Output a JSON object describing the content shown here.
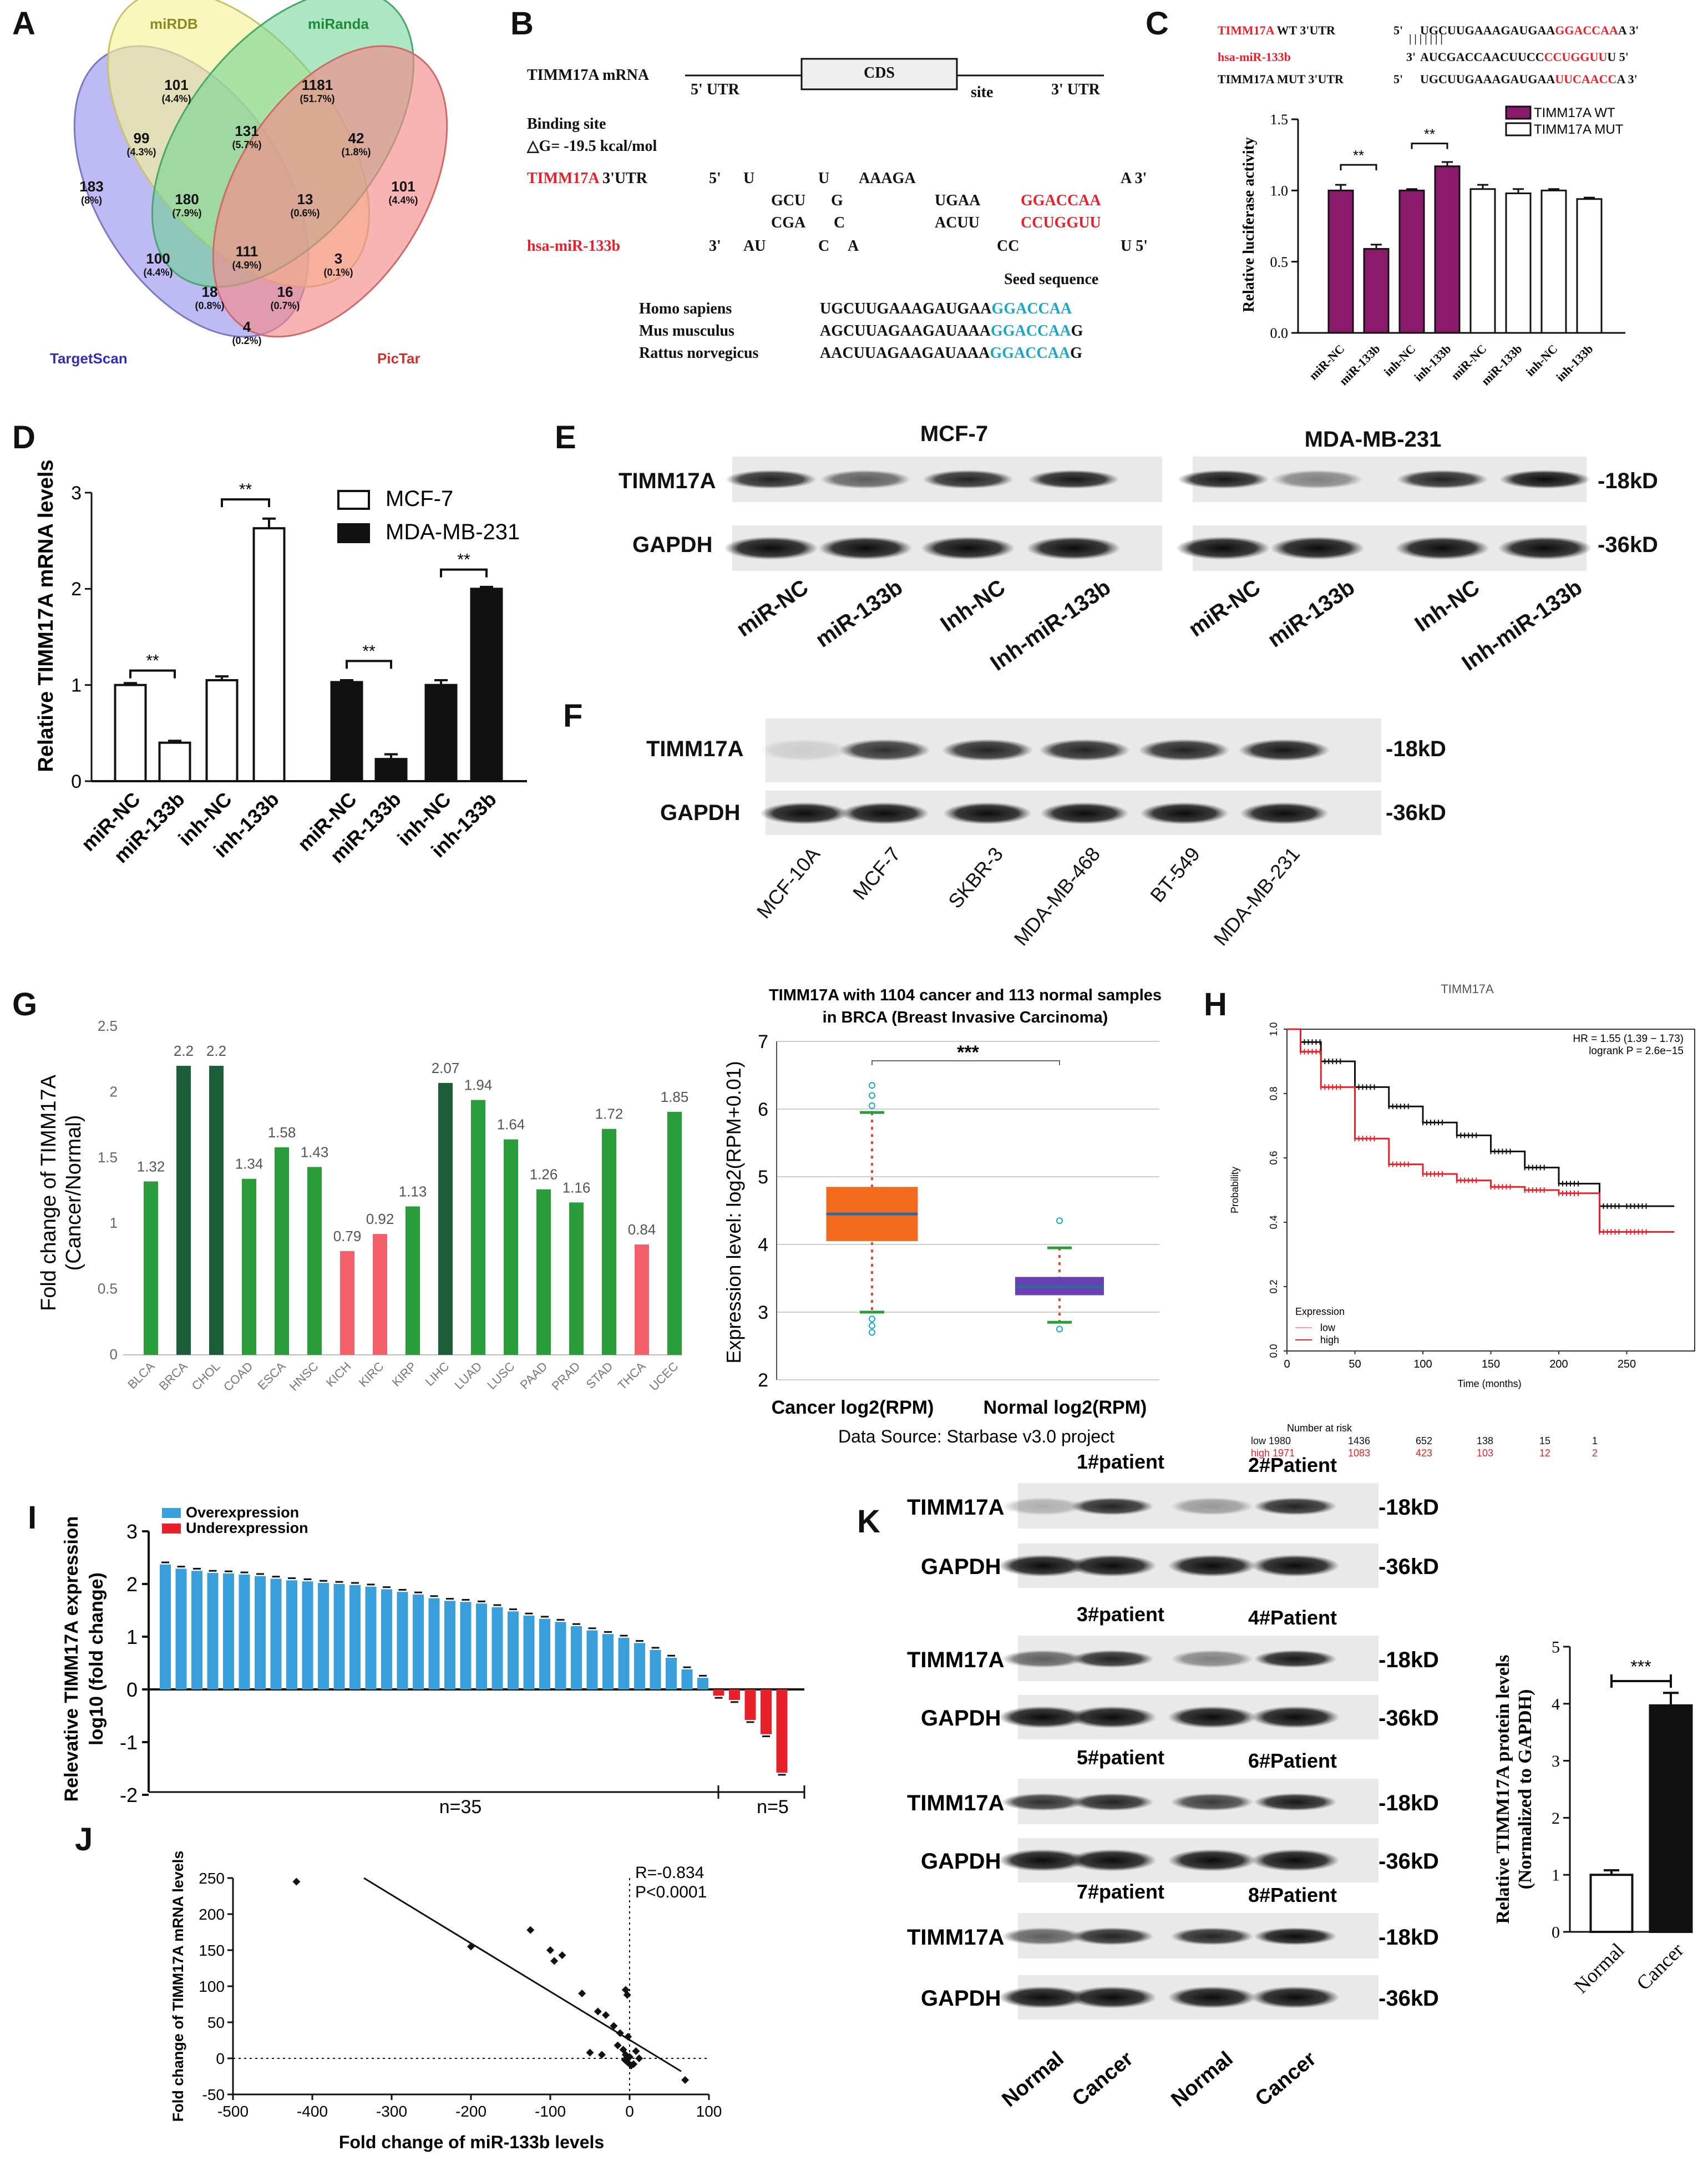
{
  "panel_labels": [
    "A",
    "B",
    "C",
    "D",
    "E",
    "F",
    "G",
    "H",
    "I",
    "J",
    "K"
  ],
  "colors": {
    "red": "#e8202a",
    "purple": "#8b1a6b",
    "blue": "#3aa0dc",
    "cyan": "#1aa6c8",
    "green": "#2a9d3a",
    "darkgreen": "#1d5e3a",
    "pink": "#f4606a",
    "black": "#111111"
  },
  "panel_A": {
    "sets": [
      "miRDB",
      "miRanda",
      "TargetScan",
      "PicTar"
    ],
    "regions": [
      {
        "n": "101",
        "p": "(4.4%)"
      },
      {
        "n": "1181",
        "p": "(51.7%)"
      },
      {
        "n": "99",
        "p": "(4.3%)"
      },
      {
        "n": "131",
        "p": "(5.7%)"
      },
      {
        "n": "42",
        "p": "(1.8%)"
      },
      {
        "n": "183",
        "p": "(8%)"
      },
      {
        "n": "180",
        "p": "(7.9%)"
      },
      {
        "n": "13",
        "p": "(0.6%)"
      },
      {
        "n": "101",
        "p": "(4.4%)"
      },
      {
        "n": "111",
        "p": "(4.9%)"
      },
      {
        "n": "100",
        "p": "(4.4%)"
      },
      {
        "n": "3",
        "p": "(0.1%)"
      },
      {
        "n": "18",
        "p": "(0.8%)"
      },
      {
        "n": "16",
        "p": "(0.7%)"
      },
      {
        "n": "4",
        "p": "(0.2%)"
      }
    ]
  },
  "panel_B": {
    "mrna": "TIMM17A mRNA",
    "cds": "CDS",
    "utr5": "5' UTR",
    "site": "site",
    "utr3": "3' UTR",
    "binding": "Binding site",
    "dg": "△G= -19.5 kcal/mol",
    "timm_label": "TIMM17A",
    "utr_label": " 3'UTR",
    "mir_label": "hsa-miR-133b",
    "l1": [
      "5'",
      "U",
      "U",
      "AAAGA",
      "A 3'"
    ],
    "l2": [
      "GCU",
      "G",
      "UGAA",
      "GGACCAA"
    ],
    "l3": [
      "CGA",
      "C",
      "ACUU",
      "CCUGGUU"
    ],
    "l4": [
      "3'",
      "AU",
      "C",
      "A",
      "CC",
      "U 5'"
    ],
    "seed_title": "Seed sequence",
    "species": [
      {
        "name": "Homo sapiens",
        "pre": "UGCUUGAAAGAUGAA",
        "seed": "GGACCAA",
        "post": ""
      },
      {
        "name": "Mus musculus",
        "pre": "AGCUUAGAAGAUAAA",
        "seed": "GGACCAA",
        "post": "G"
      },
      {
        "name": "Rattus norvegicus",
        "pre": "AACUUAGAAGAUAAA",
        "seed": "GGACCAA",
        "post": "G"
      }
    ]
  },
  "panel_C": {
    "rows": [
      {
        "label": "TIMM17A",
        "tail": " WT 3'UTR",
        "end": "5'",
        "pre": "UGCUUGAAAGAUGAA",
        "hl": "GGACCAA",
        "post": "A 3'"
      },
      {
        "label": "hsa-miR-133b",
        "tail": "",
        "end": "3'",
        "pre": "AUCGACCAACUUCC",
        "hl": "CCUGGUU",
        "post": "U 5'"
      },
      {
        "label": "TIMM17A MUT 3'UTR",
        "tail": "",
        "end": "5'",
        "pre": "UGCUUGAAAGAUGAA",
        "hl": "UUCAACC",
        "post": "A 3'"
      }
    ],
    "pairing": "| | | | | | |",
    "legend": [
      "TIMM17A WT",
      "TIMM17A MUT"
    ],
    "sig": "**"
  },
  "chart_data": [
    {
      "panel": "C",
      "type": "bar",
      "ylabel": "Relative luciferase activity",
      "ylim": [
        0,
        1.5
      ],
      "yticks": [
        "0.0",
        "0.5",
        "1.0",
        "1.5"
      ],
      "categories": [
        "miR-NC",
        "miR-133b",
        "inh-NC",
        "inh-133b",
        "miR-NC",
        "miR-133b",
        "inh-NC",
        "inh-133b"
      ],
      "values": [
        1.0,
        0.59,
        1.0,
        1.17,
        1.01,
        0.98,
        1.0,
        0.94
      ],
      "errors": [
        0.04,
        0.03,
        0.01,
        0.03,
        0.03,
        0.03,
        0.01,
        0.01
      ],
      "series_of_bar": [
        "TIMM17A WT",
        "TIMM17A WT",
        "TIMM17A WT",
        "TIMM17A WT",
        "TIMM17A MUT",
        "TIMM17A MUT",
        "TIMM17A MUT",
        "TIMM17A MUT"
      ]
    },
    {
      "panel": "D",
      "type": "bar",
      "ylabel": "Relative TIMM17A mRNA levels",
      "ylim": [
        0,
        3
      ],
      "yticks": [
        "0",
        "1",
        "2",
        "3"
      ],
      "categories": [
        "miR-NC",
        "miR-133b",
        "inh-NC",
        "inh-133b",
        "miR-NC",
        "miR-133b",
        "inh-NC",
        "inh-133b"
      ],
      "values": [
        1.0,
        0.4,
        1.05,
        2.63,
        1.03,
        0.23,
        1.0,
        2.0
      ],
      "errors": [
        0.02,
        0.02,
        0.04,
        0.1,
        0.02,
        0.05,
        0.05,
        0.02
      ],
      "series": [
        {
          "name": "MCF-7"
        },
        {
          "name": "MDA-MB-231"
        }
      ],
      "sig": "**"
    },
    {
      "panel": "G-left",
      "type": "bar",
      "ylabel": "Fold change of TIMM17A (Cancer/Normal)",
      "ylim": [
        0,
        2.5
      ],
      "yticks": [
        "0",
        "0.5",
        "1",
        "1.5",
        "2",
        "2.5"
      ],
      "categories": [
        "BLCA",
        "BRCA",
        "CHOL",
        "COAD",
        "ESCA",
        "HNSC",
        "KICH",
        "KIRC",
        "KIRP",
        "LIHC",
        "LUAD",
        "LUSC",
        "PAAD",
        "PRAD",
        "STAD",
        "THCA",
        "UCEC"
      ],
      "values": [
        1.32,
        2.2,
        2.2,
        1.34,
        1.58,
        1.43,
        0.79,
        0.92,
        1.13,
        2.07,
        1.94,
        1.64,
        1.26,
        1.16,
        1.72,
        0.84,
        1.85
      ],
      "value_labels": [
        "1.32",
        "2.2",
        "2.2",
        "1.34",
        "1.58",
        "1.43",
        "0.79",
        "0.92",
        "1.13",
        "2.07",
        "1.94",
        "1.64",
        "1.26",
        "1.16",
        "1.72",
        "0.84",
        "1.85"
      ]
    },
    {
      "panel": "G-right",
      "type": "box",
      "title": "TIMM17A with 1104 cancer and 113 normal samples",
      "subtitle": "in BRCA (Breast Invasive Carcinoma)",
      "ylabel": "Expression level:  log2(RPM+0.01)",
      "ylim": [
        2,
        7
      ],
      "yticks": [
        "2",
        "3",
        "4",
        "5",
        "6",
        "7"
      ],
      "groups": [
        {
          "name": "Cancer log2(RPM)",
          "q1": 4.05,
          "median": 4.45,
          "q3": 4.85,
          "min": 3.0,
          "max": 5.95
        },
        {
          "name": "Normal log2(RPM)",
          "q1": 3.25,
          "median": 3.38,
          "q3": 3.52,
          "min": 2.85,
          "max": 3.95
        }
      ],
      "sig": "***",
      "source": "Data Source:  Starbase v3.0 project"
    },
    {
      "panel": "H",
      "type": "line",
      "title": "TIMM17A",
      "xlabel": "Time (months)",
      "ylabel": "Probability",
      "xlim": [
        0,
        300
      ],
      "ylim": [
        0,
        1
      ],
      "xticks": [
        "0",
        "50",
        "100",
        "150",
        "200",
        "250"
      ],
      "yticks": [
        "0.0",
        "0.2",
        "0.4",
        "0.6",
        "0.8",
        "1.0"
      ],
      "hr": "HR = 1.55 (1.39 − 1.73)",
      "logrank": "logrank P = 2.6e−15",
      "legend_title": "Expression",
      "legend": [
        "low",
        "high"
      ],
      "series": [
        {
          "name": "low",
          "x": [
            0,
            10,
            25,
            50,
            75,
            100,
            125,
            150,
            175,
            200,
            230,
            250,
            285
          ],
          "y": [
            1,
            0.96,
            0.9,
            0.82,
            0.76,
            0.71,
            0.67,
            0.62,
            0.57,
            0.52,
            0.45,
            0.45,
            0.45
          ]
        },
        {
          "name": "high",
          "x": [
            0,
            10,
            25,
            50,
            75,
            100,
            125,
            150,
            175,
            200,
            230,
            250,
            285
          ],
          "y": [
            1,
            0.93,
            0.82,
            0.66,
            0.58,
            0.55,
            0.53,
            0.51,
            0.5,
            0.49,
            0.37,
            0.37,
            0.37
          ]
        }
      ],
      "risk_title": "Number at risk",
      "risk": [
        {
          "label": "low 1980",
          "v": [
            "1436",
            "652",
            "138",
            "15",
            "1"
          ]
        },
        {
          "label": "high 1971",
          "v": [
            "1083",
            "423",
            "103",
            "12",
            "2"
          ]
        }
      ]
    },
    {
      "panel": "I",
      "type": "bar",
      "ylabel": "Relevative TIMM17A expression log10 (fold change)",
      "ylim": [
        -2,
        3
      ],
      "yticks": [
        "-2",
        "-1",
        "0",
        "1",
        "2",
        "3"
      ],
      "legend": [
        "Overexpression",
        "Underexpression"
      ],
      "n_labels": [
        "n=35",
        "n=5"
      ],
      "values": [
        2.37,
        2.29,
        2.25,
        2.21,
        2.2,
        2.18,
        2.15,
        2.1,
        2.07,
        2.05,
        2.02,
        2.0,
        1.98,
        1.95,
        1.9,
        1.85,
        1.8,
        1.73,
        1.68,
        1.66,
        1.63,
        1.56,
        1.48,
        1.4,
        1.34,
        1.28,
        1.2,
        1.12,
        1.05,
        0.98,
        0.88,
        0.75,
        0.6,
        0.38,
        0.22,
        -0.12,
        -0.2,
        -0.58,
        -0.85,
        -1.58
      ]
    },
    {
      "panel": "J",
      "type": "scatter",
      "xlabel": "Fold change of miR-133b levels",
      "ylabel": "Fold change of TIMM17A mRNA levels",
      "xlim": [
        -500,
        100
      ],
      "ylim": [
        -50,
        250
      ],
      "xticks": [
        "-500",
        "-400",
        "-300",
        "-200",
        "-100",
        "0",
        "100"
      ],
      "yticks": [
        "-50",
        "0",
        "50",
        "100",
        "150",
        "200",
        "250"
      ],
      "stats": [
        "R=-0.834",
        "P<0.0001"
      ],
      "points": [
        [
          -420,
          245
        ],
        [
          -200,
          155
        ],
        [
          -125,
          178
        ],
        [
          -100,
          150
        ],
        [
          -95,
          135
        ],
        [
          -85,
          143
        ],
        [
          -60,
          90
        ],
        [
          -40,
          65
        ],
        [
          -30,
          60
        ],
        [
          -5,
          95
        ],
        [
          -3,
          88
        ],
        [
          -20,
          45
        ],
        [
          -12,
          35
        ],
        [
          -2,
          30
        ],
        [
          -50,
          8
        ],
        [
          -35,
          5
        ],
        [
          -15,
          18
        ],
        [
          -8,
          12
        ],
        [
          -5,
          5
        ],
        [
          0,
          2
        ],
        [
          -3,
          -5
        ],
        [
          5,
          -8
        ],
        [
          8,
          10
        ],
        [
          12,
          0
        ],
        [
          -6,
          -2
        ],
        [
          2,
          -10
        ],
        [
          70,
          -30
        ]
      ],
      "fit": [
        [
          -335,
          250
        ],
        [
          65,
          -18
        ]
      ]
    },
    {
      "panel": "K-chart",
      "type": "bar",
      "ylabel": "Relative TIMM17A protein levels (Normalized to GAPDH)",
      "ylim": [
        0,
        5
      ],
      "yticks": [
        "0",
        "1",
        "2",
        "3",
        "4",
        "5"
      ],
      "categories": [
        "Normal",
        "Cancer"
      ],
      "values": [
        1.0,
        3.97
      ],
      "errors": [
        0.08,
        0.22
      ],
      "sig": "***"
    }
  ],
  "panel_E": {
    "cells": [
      "MCF-7",
      "MDA-MB-231"
    ],
    "rows": [
      "TIMM17A",
      "GAPDH"
    ],
    "sizes": [
      "-18kD",
      "-36kD"
    ],
    "lanes": [
      "miR-NC",
      "miR-133b",
      "Inh-NC",
      "Inh-miR-133b",
      "miR-NC",
      "miR-133b",
      "Inh-NC",
      "Inh-miR-133b"
    ]
  },
  "panel_F": {
    "rows": [
      "TIMM17A",
      "GAPDH"
    ],
    "sizes": [
      "-18kD",
      "-36kD"
    ],
    "lanes": [
      "MCF-10A",
      "MCF-7",
      "SKBR-3",
      "MDA-MB-468",
      "BT-549",
      "MDA-MB-231"
    ]
  },
  "panel_K": {
    "patients": [
      "1#patient",
      "2#Patient",
      "3#patient",
      "4#Patient",
      "5#patient",
      "6#Patient",
      "7#patient",
      "8#Patient"
    ],
    "rows": [
      "TIMM17A",
      "GAPDH"
    ],
    "sizes": [
      "-18kD",
      "-36kD"
    ],
    "lanes": [
      "Normal",
      "Cancer",
      "Normal",
      "Cancer"
    ]
  }
}
